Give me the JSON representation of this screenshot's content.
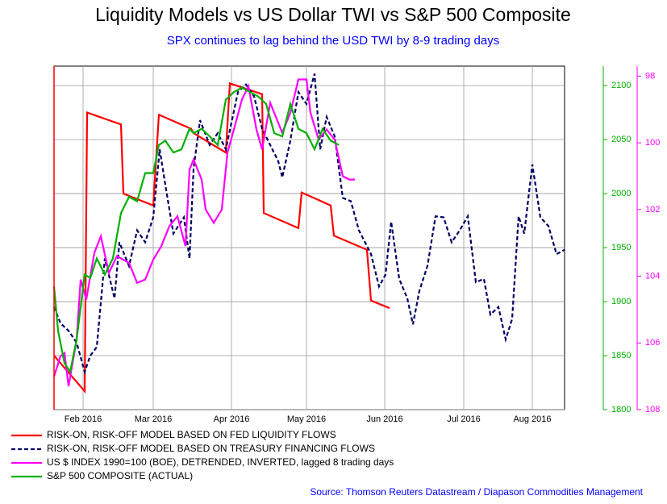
{
  "chart_data": {
    "type": "line",
    "title": "Liquidity Models vs US Dollar TWI vs S&P 500 Composite",
    "subtitle": "SPX continues to lag behind the USD TWI by 8-9 trading days",
    "source": "Source: Thomson Reuters Datastream / Diapason Commodities Management",
    "xlim": [
      0,
      126.6
    ],
    "xticks": [
      {
        "value": 7.2,
        "label": "Feb 2016"
      },
      {
        "value": 24.6,
        "label": "Mar 2016"
      },
      {
        "value": 44,
        "label": "Apr 2016"
      },
      {
        "value": 62.6,
        "label": "May 2016"
      },
      {
        "value": 82,
        "label": "Jun 2016"
      },
      {
        "value": 101.6,
        "label": "Jul 2016"
      },
      {
        "value": 118.6,
        "label": "Aug 2016"
      }
    ],
    "ylim": [
      1800,
      2118
    ],
    "yticks": [
      1800,
      1850,
      1900,
      1950,
      2000,
      2050,
      2100
    ],
    "y_color": "#00b000",
    "y2lim": [
      108,
      97.7
    ],
    "y2ticks": [
      98,
      100,
      102,
      104,
      106,
      108
    ],
    "y2_color": "#ff00ff",
    "grid": true,
    "series": [
      {
        "name": "RISK-ON, RISK-OFF MODEL BASED ON FED LIQUIDITY FLOWS",
        "color": "#ff0000",
        "dashed": false,
        "x": [
          0,
          7.6,
          8.2,
          16.6,
          17.2,
          24.6,
          26,
          34,
          34.6,
          42.6,
          43.6,
          51.6,
          52,
          60.6,
          61.4,
          68.6,
          69.4,
          77.6,
          78.6,
          83.2
        ],
        "values": [
          1850,
          1817,
          2075,
          2064,
          2000,
          1989,
          2073,
          2060,
          2056,
          2038,
          2102,
          2092,
          1982,
          1968,
          2001,
          1989,
          1961,
          1948,
          1901,
          1894
        ]
      },
      {
        "name": "RISK-ON, RISK-OFF  MODEL BASED ON TREASURY FINANCING FLOWS",
        "color": "#000066",
        "dashed": true,
        "x": [
          0,
          1.6,
          3.6,
          5.6,
          7.6,
          9,
          10.6,
          12.6,
          15,
          16.2,
          18.6,
          20.6,
          22.6,
          24.6,
          26.2,
          27.6,
          29.6,
          32.2,
          33.6,
          34.6,
          36.2,
          38.6,
          40.6,
          42.6,
          45.6,
          47.6,
          49.6,
          51.6,
          53.6,
          55.6,
          56.6,
          58.6,
          60.6,
          62.6,
          64.6,
          66,
          67.6,
          69.6,
          71.6,
          73.6,
          75.6,
          78.6,
          80.6,
          82.2,
          83.6,
          85.6,
          87.6,
          89,
          90.6,
          92.6,
          94.6,
          96.6,
          98.6,
          100.6,
          102.6,
          104.6,
          106.6,
          108.2,
          110.2,
          112,
          113.6,
          115.2,
          116.6,
          118.6,
          120.6,
          122.6,
          124.6,
          126.6
        ],
        "values": [
          1895,
          1880,
          1873,
          1862,
          1835,
          1850,
          1858,
          1940,
          1903,
          1955,
          1933,
          1966,
          1955,
          1978,
          2041,
          2008,
          1963,
          1978,
          1940,
          2023,
          2068,
          2045,
          2056,
          2041,
          2094,
          2101,
          2090,
          2060,
          2045,
          2030,
          2015,
          2049,
          2094,
          2083,
          2111,
          2041,
          2071,
          2053,
          1996,
          1993,
          1966,
          1944,
          1914,
          1925,
          1974,
          1921,
          1903,
          1879,
          1910,
          1933,
          1979,
          1978,
          1955,
          1966,
          1979,
          1918,
          1921,
          1888,
          1895,
          1865,
          1884,
          1979,
          1963,
          2027,
          1978,
          1970,
          1944,
          1948
        ]
      },
      {
        "name": "US $ INDEX 1990=100 (BOE), DETRENDED, INVERTED, lagged 8 trading days",
        "color": "#ff00ff",
        "dashed": false,
        "axis": "y2",
        "x": [
          0,
          1.6,
          2.6,
          3.6,
          5.6,
          6.6,
          8,
          10,
          11.6,
          13.6,
          15.6,
          18.6,
          20.6,
          22.6,
          24.6,
          26.6,
          28.6,
          30.6,
          32.6,
          33.6,
          34.6,
          36.6,
          37.6,
          39.6,
          41.6,
          43,
          44.6,
          46.6,
          48.2,
          50.2,
          51.6,
          53.6,
          56.6,
          58.6,
          60.6,
          62.6,
          63.6,
          65.6,
          67.6,
          69.6,
          71.6,
          73.2,
          74.6
        ],
        "values": [
          107.0,
          106.4,
          106.3,
          107.3,
          105.9,
          104.1,
          104.7,
          103.3,
          102.8,
          103.9,
          103.4,
          103.6,
          104.2,
          104.1,
          103.5,
          103.1,
          102.5,
          102.2,
          103.1,
          100.8,
          100.5,
          101.1,
          102.0,
          102.4,
          102.0,
          100.3,
          99.6,
          98.7,
          98.3,
          99.6,
          100.2,
          98.8,
          99.7,
          99.1,
          98.1,
          98.1,
          99.1,
          99.9,
          99.6,
          99.9,
          101.0,
          101.1,
          101.1
        ]
      },
      {
        "name": "S&P 500 COMPOSITE (ACTUAL)",
        "color": "#00b000",
        "dashed": false,
        "x": [
          0,
          1,
          2.6,
          4,
          5.6,
          7.6,
          9,
          10.6,
          12.6,
          14.6,
          16.6,
          18.6,
          20.6,
          22.6,
          24.6,
          26,
          27.6,
          29.6,
          31.6,
          33.6,
          34.6,
          36.6,
          38.6,
          40.6,
          42.6,
          44.6,
          46.6,
          48.6,
          50.6,
          52.6,
          54.6,
          56.6,
          58.6,
          60.6,
          62.6,
          64.6,
          66.6,
          68.6,
          70.6
        ],
        "values": [
          1914,
          1873,
          1843,
          1835,
          1865,
          1925,
          1922,
          1940,
          1925,
          1940,
          1982,
          1997,
          1993,
          2019,
          2019,
          2045,
          2049,
          2038,
          2041,
          2060,
          2056,
          2060,
          2053,
          2045,
          2087,
          2094,
          2098,
          2094,
          2090,
          2083,
          2056,
          2053,
          2083,
          2060,
          2056,
          2041,
          2060,
          2049,
          2045
        ]
      }
    ]
  }
}
